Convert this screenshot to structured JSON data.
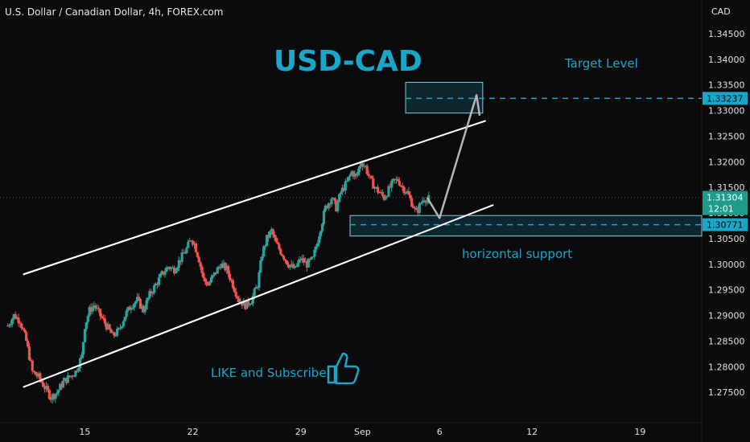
{
  "header": {
    "instrument": "U.S. Dollar / Canadian Dollar, 4h, FOREX.com",
    "currency": "CAD"
  },
  "colors": {
    "up": "#26a69a",
    "down": "#ef5350",
    "channel": "#ffffff",
    "zone": "#1aa7c7",
    "arrow": "#b5b5b5"
  },
  "chart_data": {
    "type": "candlestick",
    "title": "USD-CAD",
    "ylim": [
      1.27,
      1.35
    ],
    "yticks": [
      "1.34500",
      "1.34000",
      "1.33500",
      "1.33000",
      "1.32500",
      "1.32000",
      "1.31500",
      "1.31000",
      "1.30500",
      "1.30000",
      "1.29500",
      "1.29000",
      "1.28500",
      "1.28000",
      "1.27500"
    ],
    "xticks": [
      {
        "label": "15",
        "x": 13
      },
      {
        "label": "22",
        "x": 20
      },
      {
        "label": "29",
        "x": 27
      },
      {
        "label": "Sep",
        "x": 31
      },
      {
        "label": "6",
        "x": 36
      },
      {
        "label": "12",
        "x": 42
      },
      {
        "label": "19",
        "x": 49
      }
    ],
    "xlim": [
      7.5,
      53
    ],
    "anchors": [
      [
        8.0,
        1.288
      ],
      [
        8.4,
        1.29
      ],
      [
        8.8,
        1.289
      ],
      [
        9.2,
        1.285
      ],
      [
        9.6,
        1.279
      ],
      [
        10.0,
        1.278
      ],
      [
        10.4,
        1.276
      ],
      [
        10.8,
        1.274
      ],
      [
        11.2,
        1.275
      ],
      [
        11.6,
        1.277
      ],
      [
        12.0,
        1.278
      ],
      [
        12.4,
        1.279
      ],
      [
        12.8,
        1.282
      ],
      [
        13.0,
        1.288
      ],
      [
        13.3,
        1.291
      ],
      [
        13.6,
        1.292
      ],
      [
        14.0,
        1.29
      ],
      [
        14.4,
        1.288
      ],
      [
        14.8,
        1.286
      ],
      [
        15.2,
        1.287
      ],
      [
        15.6,
        1.29
      ],
      [
        16.0,
        1.292
      ],
      [
        16.4,
        1.293
      ],
      [
        16.8,
        1.291
      ],
      [
        17.2,
        1.294
      ],
      [
        17.6,
        1.296
      ],
      [
        18.0,
        1.298
      ],
      [
        18.4,
        1.2995
      ],
      [
        18.8,
        1.299
      ],
      [
        19.2,
        1.301
      ],
      [
        19.6,
        1.303
      ],
      [
        19.9,
        1.305
      ],
      [
        20.1,
        1.304
      ],
      [
        20.4,
        1.301
      ],
      [
        20.7,
        1.297
      ],
      [
        21.0,
        1.296
      ],
      [
        21.4,
        1.298
      ],
      [
        21.8,
        1.3
      ],
      [
        22.2,
        1.299
      ],
      [
        22.6,
        1.296
      ],
      [
        23.0,
        1.293
      ],
      [
        23.4,
        1.292
      ],
      [
        23.8,
        1.293
      ],
      [
        24.2,
        1.296
      ],
      [
        24.5,
        1.302
      ],
      [
        24.8,
        1.305
      ],
      [
        25.1,
        1.3065
      ],
      [
        25.4,
        1.304
      ],
      [
        25.8,
        1.302
      ],
      [
        26.2,
        1.3
      ],
      [
        26.6,
        1.299
      ],
      [
        27.0,
        1.301
      ],
      [
        27.4,
        1.3
      ],
      [
        27.8,
        1.301
      ],
      [
        28.2,
        1.306
      ],
      [
        28.6,
        1.311
      ],
      [
        29.0,
        1.313
      ],
      [
        29.3,
        1.311
      ],
      [
        29.6,
        1.314
      ],
      [
        30.0,
        1.316
      ],
      [
        30.3,
        1.318
      ],
      [
        30.6,
        1.317
      ],
      [
        30.9,
        1.32
      ],
      [
        31.2,
        1.319
      ],
      [
        31.5,
        1.3165
      ],
      [
        31.8,
        1.315
      ],
      [
        32.1,
        1.314
      ],
      [
        32.4,
        1.313
      ],
      [
        32.7,
        1.3145
      ],
      [
        33.0,
        1.316
      ],
      [
        33.3,
        1.3165
      ],
      [
        33.6,
        1.315
      ],
      [
        33.9,
        1.314
      ],
      [
        34.2,
        1.312
      ],
      [
        34.5,
        1.31
      ],
      [
        34.8,
        1.312
      ],
      [
        35.0,
        1.313
      ],
      [
        35.2,
        1.3125
      ],
      [
        35.4,
        1.313
      ]
    ],
    "price_levels": {
      "target": "1.33237",
      "current": "1.31304",
      "countdown": "12:01",
      "support": "1.30771"
    },
    "levels_numeric": {
      "target": 1.33237,
      "current": 1.31304,
      "support": 1.30771
    },
    "annotations": {
      "target_label": "Target Level",
      "support_label": "horizontal support",
      "cta": "LIKE and Subscribe"
    },
    "channel": {
      "upper": [
        [
          9,
          1.298
        ],
        [
          33,
          1.322
        ]
      ],
      "lower": [
        [
          9,
          1.276
        ],
        [
          33,
          1.304
        ]
      ]
    },
    "target_zone": [
      1.3295,
      1.3355
    ],
    "support_zone": [
      1.3055,
      1.3095
    ],
    "projection": [
      [
        35.2,
        1.313
      ],
      [
        36.0,
        1.309
      ],
      [
        38.4,
        1.333
      ],
      [
        38.6,
        1.329
      ]
    ]
  }
}
